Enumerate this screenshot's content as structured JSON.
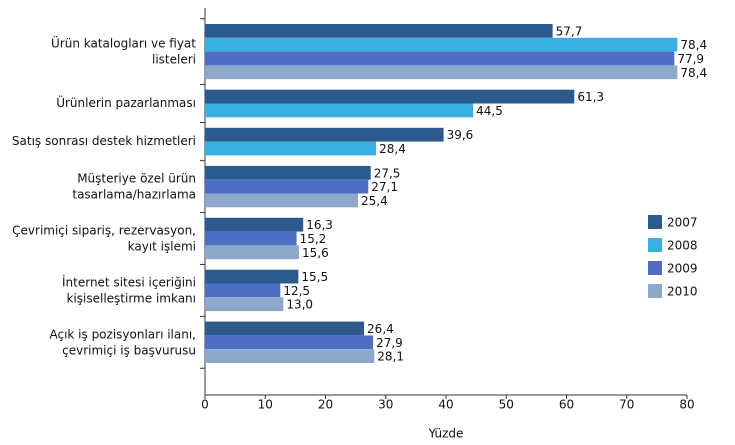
{
  "chart_data": {
    "type": "hbar",
    "categories": [
      "Ürün katalogları ve fiyat\nlisteleri",
      "Ürünlerin pazarlanması",
      "Satış sonrası destek hizmetleri",
      "Müşteriye özel ürün\ntasarlama/hazırlama",
      "Çevrimiçi sipariş, rezervasyon,\nkayıt işlemi",
      "İnternet sitesi içeriğini\nkişiselleştirme imkanı",
      "Açık iş pozisyonları ilanı,\nçevrimiçi iş başvurusu"
    ],
    "series": [
      {
        "name": "2007",
        "color": "#2c5a8c",
        "values": [
          57.7,
          61.3,
          39.6,
          27.5,
          16.3,
          15.5,
          26.4
        ],
        "value_labels": [
          "57,7",
          "61,3",
          "39,6",
          "27,5",
          "16,3",
          "15,5",
          "26,4"
        ]
      },
      {
        "name": "2008",
        "color": "#3ab0e2",
        "values": [
          78.4,
          44.5,
          28.4,
          null,
          null,
          null,
          null
        ],
        "value_labels": [
          "78,4",
          "44,5",
          "28,4",
          null,
          null,
          null,
          null
        ]
      },
      {
        "name": "2009",
        "color": "#4e6ec4",
        "values": [
          77.9,
          null,
          null,
          27.1,
          15.2,
          12.5,
          27.9
        ],
        "value_labels": [
          "77,9",
          null,
          null,
          "27,1",
          "15,2",
          "12,5",
          "27,9"
        ]
      },
      {
        "name": "2010",
        "color": "#8ea8cc",
        "values": [
          78.4,
          null,
          null,
          25.4,
          15.6,
          13.0,
          28.1
        ],
        "value_labels": [
          "78,4",
          null,
          null,
          "25,4",
          "15,6",
          "13,0",
          "28,1"
        ]
      }
    ],
    "x_label": "Yüzde",
    "xlim": [
      0,
      80
    ],
    "xticks": [
      0,
      10,
      20,
      30,
      40,
      50,
      60,
      70,
      80
    ],
    "legend": "right"
  }
}
